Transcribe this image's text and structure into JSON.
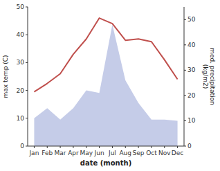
{
  "chart_data": {
    "type": "line",
    "categories": [
      "Jan",
      "Feb",
      "Mar",
      "Apr",
      "May",
      "Jun",
      "Jul",
      "Aug",
      "Sep",
      "Oct",
      "Nov",
      "Dec"
    ],
    "xlabel": "date (month)",
    "ylabel": "max temp (C)",
    "y2label": "med. precipitation\n(kg/m2)",
    "ylim": [
      0,
      50
    ],
    "yticks": [
      0,
      10,
      20,
      30,
      40,
      50
    ],
    "y2lim": [
      0,
      55
    ],
    "y2ticks": [
      0,
      10,
      20,
      30,
      40,
      50
    ],
    "grid": false,
    "series": [
      {
        "type": "area",
        "axis": "y2",
        "color": "#c5cce8",
        "values": [
          11.0,
          15.0,
          10.5,
          15.0,
          22.0,
          21.0,
          48.0,
          26.0,
          17.0,
          10.5,
          10.5,
          10.0
        ]
      },
      {
        "type": "line",
        "color": "#c0504d",
        "values": [
          19.5,
          22.5,
          26.0,
          33.0,
          38.5,
          46.0,
          44.0,
          38.0,
          38.5,
          37.5,
          31.0,
          24.0
        ]
      }
    ]
  }
}
